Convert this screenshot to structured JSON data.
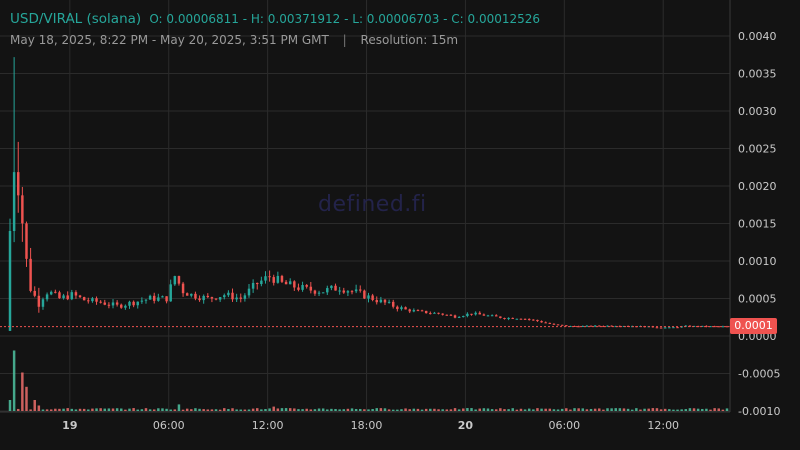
{
  "header": {
    "symbol": "USD/VIRAL (solana)",
    "ohlc_text": "O: 0.00006811 - H: 0.00371912 - L: 0.00006703 - C: 0.00012526",
    "date_range": "May 18, 2025, 8:22 PM - May 20, 2025, 3:51 PM GMT",
    "separator": "|",
    "resolution": "Resolution: 15m"
  },
  "watermark": "defined.fi",
  "last_price_label": "0.0001",
  "colors": {
    "background": "#131313",
    "grid": "#2b2b2b",
    "up": "#26a69a",
    "down": "#ef5350",
    "volume_up": "#4fc3a1",
    "volume_down": "#ef6f6c",
    "text": "#c9c9c9"
  },
  "chart_data": {
    "type": "candlestick",
    "title": "USD/VIRAL (solana)",
    "resolution": "15m",
    "y_ticks": [
      "0.0040",
      "0.0035",
      "0.0030",
      "0.0025",
      "0.0020",
      "0.0015",
      "0.0010",
      "0.0005",
      "0.0000",
      "-0.0005",
      "-0.0010"
    ],
    "y_tick_values": [
      0.004,
      0.0035,
      0.003,
      0.0025,
      0.002,
      0.0015,
      0.001,
      0.0005,
      0.0,
      -0.0005,
      -0.001
    ],
    "x_ticks": [
      "19",
      "06:00",
      "12:00",
      "18:00",
      "20",
      "06:00",
      "12:00"
    ],
    "x_tick_bold": [
      true,
      false,
      false,
      false,
      true,
      false,
      false
    ],
    "x_tick_hours": [
      3.63,
      9.63,
      15.63,
      21.63,
      27.63,
      33.63,
      39.63
    ],
    "x_range_hours": [
      0,
      43.5
    ],
    "ylim": [
      -0.001,
      0.0043
    ],
    "last_close": 0.00012526,
    "grid": true,
    "anchors_close": [
      [
        0.0,
        0.0014
      ],
      [
        0.3,
        0.0026
      ],
      [
        0.6,
        0.002
      ],
      [
        0.9,
        0.0011
      ],
      [
        1.3,
        0.0006
      ],
      [
        1.7,
        0.00045
      ],
      [
        2.3,
        0.0006
      ],
      [
        3.0,
        0.0005
      ],
      [
        3.8,
        0.00055
      ],
      [
        4.5,
        0.00048
      ],
      [
        5.5,
        0.00045
      ],
      [
        6.5,
        0.0004
      ],
      [
        7.5,
        0.00045
      ],
      [
        8.5,
        0.0005
      ],
      [
        9.5,
        0.0005
      ],
      [
        10.0,
        0.0008
      ],
      [
        10.5,
        0.0006
      ],
      [
        11.0,
        0.00055
      ],
      [
        12.0,
        0.0005
      ],
      [
        13.0,
        0.00055
      ],
      [
        14.0,
        0.0005
      ],
      [
        15.0,
        0.0007
      ],
      [
        15.8,
        0.0008
      ],
      [
        16.5,
        0.0007
      ],
      [
        18.0,
        0.00062
      ],
      [
        19.0,
        0.0006
      ],
      [
        20.0,
        0.00065
      ],
      [
        21.0,
        0.00058
      ],
      [
        22.0,
        0.0005
      ],
      [
        23.0,
        0.00042
      ],
      [
        24.0,
        0.00035
      ],
      [
        25.0,
        0.00032
      ],
      [
        26.0,
        0.0003
      ],
      [
        27.0,
        0.00026
      ],
      [
        28.0,
        0.0003
      ],
      [
        29.0,
        0.00027
      ],
      [
        30.0,
        0.00024
      ],
      [
        31.0,
        0.00024
      ],
      [
        32.0,
        0.0002
      ],
      [
        33.0,
        0.00015
      ],
      [
        34.0,
        0.00013
      ],
      [
        35.0,
        0.00013
      ],
      [
        37.0,
        0.00014
      ],
      [
        39.0,
        0.00012
      ],
      [
        40.0,
        0.00011
      ],
      [
        41.0,
        0.00013
      ],
      [
        43.5,
        0.000125
      ]
    ],
    "volume_spikes": [
      [
        0.0,
        0.1
      ],
      [
        0.3,
        0.55
      ],
      [
        0.7,
        0.35
      ],
      [
        1.0,
        0.22
      ],
      [
        1.4,
        0.1
      ],
      [
        1.8,
        0.05
      ],
      [
        10.3,
        0.06
      ],
      [
        16.0,
        0.04
      ]
    ]
  }
}
